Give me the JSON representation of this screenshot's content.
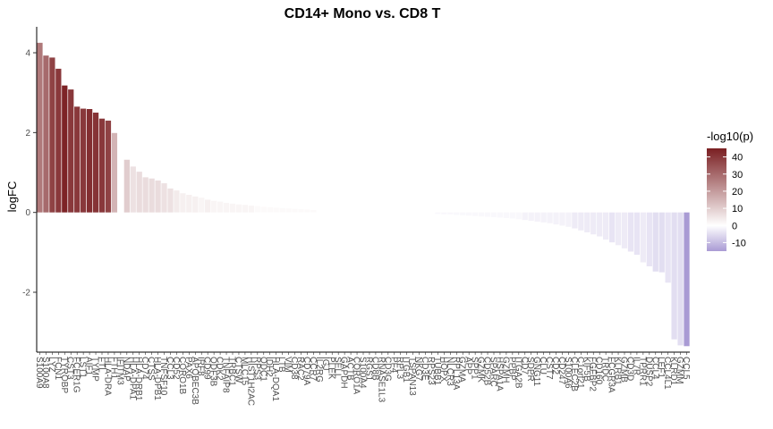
{
  "chart_data": {
    "type": "bar",
    "title": "CD14+ Mono vs. CD8 T",
    "xlabel": "",
    "ylabel": "logFC",
    "ylim": [
      -3.5,
      4.65
    ],
    "yticks": [
      -2,
      0,
      2,
      4
    ],
    "grid": false,
    "legend": {
      "title": "-log10(p)",
      "position": "right",
      "ticks": [
        -10,
        0,
        10,
        20,
        30,
        40
      ],
      "range": [
        -15,
        45
      ],
      "low_color": "#a99bd4",
      "mid_color": "#ffffff",
      "high_color": "#7a1f22"
    },
    "categories": [
      "S100A9",
      "S100A8",
      "LYZ",
      "FCN1",
      "TYROBP",
      "CST3",
      "FCER1G",
      "LST1",
      "AIF1",
      "TYMP",
      "FTL",
      "HLA-DRA",
      "FTH1",
      "IFITM3",
      "NDAP",
      "HLA-DPA1",
      "HLA-DRB1",
      "CD74",
      "CTSS",
      "HLA-DPB1",
      "TNFSF10",
      "CCL3",
      "CD52",
      "CORO1B",
      "PAX6",
      "APOBEC3B",
      "IRF8",
      "CD99",
      "ODF3B",
      "CDK2",
      "TNFAIP8",
      "TRBC1",
      "CTSW",
      "MLC15",
      "HIST1H2AC",
      "RPS3",
      "ODC1",
      "IDH2",
      "HLA-DQA1",
      "LTB",
      "VIM",
      "CD38",
      "RAC2",
      "CD79A",
      "CCR7",
      "IL2RG",
      "IGJ",
      "PLEK",
      "SELL",
      "GAPDH",
      "ACTB",
      "CORO1A",
      "S100A4",
      "RGS1",
      "CD8B",
      "RNASE1L3",
      "CD3G",
      "PF4",
      "RPL3",
      "ITGB1",
      "TSPAN13",
      "NKG7",
      "CD3E",
      "RPS23",
      "TUBB1",
      "HOPX",
      "NLCR3",
      "RPL13A",
      "GZMA",
      "APP",
      "SPP1",
      "GZMK",
      "CD52B",
      "SPARC",
      "HSPA1A",
      "GZMH",
      "PPBP",
      "ITGA2B",
      "CD7",
      "SDPR",
      "GNG11",
      "CLU",
      "CST7",
      "CD2",
      "CD247",
      "S100A6",
      "CLEC2B",
      "C1orf21",
      "KIF5B",
      "FGFBP2",
      "CD160",
      "TRDC",
      "FCGR3A",
      "KLRB1",
      "GZMB",
      "CD3D",
      "IL7R",
      "TPRR1",
      "DUSP2",
      "CCL4",
      "LEF1",
      "CCL4L1",
      "KLRD1",
      "GZMM",
      "CCL5"
    ],
    "values": [
      4.25,
      3.93,
      3.88,
      3.6,
      3.18,
      3.08,
      2.65,
      2.6,
      2.59,
      2.5,
      2.35,
      2.3,
      1.99,
      0.0,
      1.32,
      1.15,
      1.02,
      0.88,
      0.85,
      0.8,
      0.73,
      0.6,
      0.55,
      0.48,
      0.44,
      0.4,
      0.37,
      0.32,
      0.29,
      0.27,
      0.24,
      0.22,
      0.2,
      0.19,
      0.17,
      0.16,
      0.14,
      0.13,
      0.12,
      0.11,
      0.1,
      0.09,
      0.08,
      0.07,
      0.06,
      0.06,
      0.05,
      0.05,
      0.04,
      0.04,
      0.03,
      0.03,
      0.02,
      0.02,
      0.02,
      0.01,
      0.01,
      0.01,
      0.0,
      -0.01,
      -0.01,
      -0.02,
      -0.02,
      -0.03,
      -0.04,
      -0.05,
      -0.05,
      -0.06,
      -0.07,
      -0.08,
      -0.09,
      -0.1,
      -0.11,
      -0.12,
      -0.13,
      -0.14,
      -0.15,
      -0.17,
      -0.19,
      -0.21,
      -0.23,
      -0.25,
      -0.27,
      -0.3,
      -0.33,
      -0.36,
      -0.4,
      -0.45,
      -0.5,
      -0.55,
      -0.6,
      -0.68,
      -0.75,
      -0.82,
      -0.9,
      -0.98,
      -1.06,
      -1.25,
      -1.35,
      -1.48,
      -1.5,
      -1.76,
      -3.18,
      -3.33,
      -3.35
    ],
    "neglog10p": [
      27,
      30,
      38,
      40,
      44,
      40,
      40,
      40,
      42,
      41,
      40,
      38,
      15,
      0,
      10,
      6,
      7,
      7,
      7,
      7,
      6,
      6,
      4,
      3,
      3,
      3,
      2,
      3,
      2,
      2,
      2,
      2,
      2,
      2,
      2,
      1,
      1,
      1,
      1,
      1,
      1,
      1,
      1,
      1,
      1,
      0,
      0,
      0,
      0,
      0,
      0,
      0,
      0,
      0,
      0,
      0,
      0,
      0,
      0,
      0,
      0,
      0,
      0,
      0,
      -1,
      -1,
      -1,
      -1,
      -1,
      -1,
      -1,
      -1,
      -1,
      -1,
      -1,
      -1,
      -1,
      -1,
      -2,
      -2,
      -2,
      -2,
      -2,
      -2,
      -2,
      -2,
      -3,
      -3,
      -3,
      -3,
      -3,
      -3,
      -4,
      -3,
      -3,
      -4,
      -4,
      -3,
      -4,
      -5,
      -5,
      -4,
      -5,
      -5,
      -15
    ]
  }
}
